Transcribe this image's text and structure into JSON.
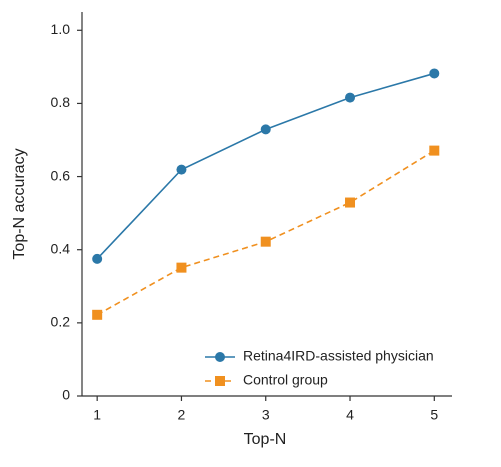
{
  "chart_data": {
    "type": "line",
    "xlabel": "Top-N",
    "ylabel": "Top-N accuracy",
    "x": [
      1,
      2,
      3,
      4,
      5
    ],
    "series": [
      {
        "name": "Retina4IRD-assisted physician",
        "color": "#2b78a8",
        "marker": "circle",
        "dash": "solid",
        "values": [
          0.375,
          0.619,
          0.729,
          0.816,
          0.882
        ]
      },
      {
        "name": "Control group",
        "color": "#f0901f",
        "marker": "square",
        "dash": "dashed",
        "values": [
          0.222,
          0.351,
          0.422,
          0.529,
          0.671
        ]
      }
    ],
    "xlim": [
      0.82,
      5.21
    ],
    "xticks": [
      1,
      2,
      3,
      4,
      5
    ],
    "ylim": [
      0,
      1.05
    ],
    "yticks": [
      0,
      0.2,
      0.4,
      0.6,
      0.8,
      {
        "value": 1,
        "label": "1.0"
      }
    ],
    "legend": "lower right"
  }
}
